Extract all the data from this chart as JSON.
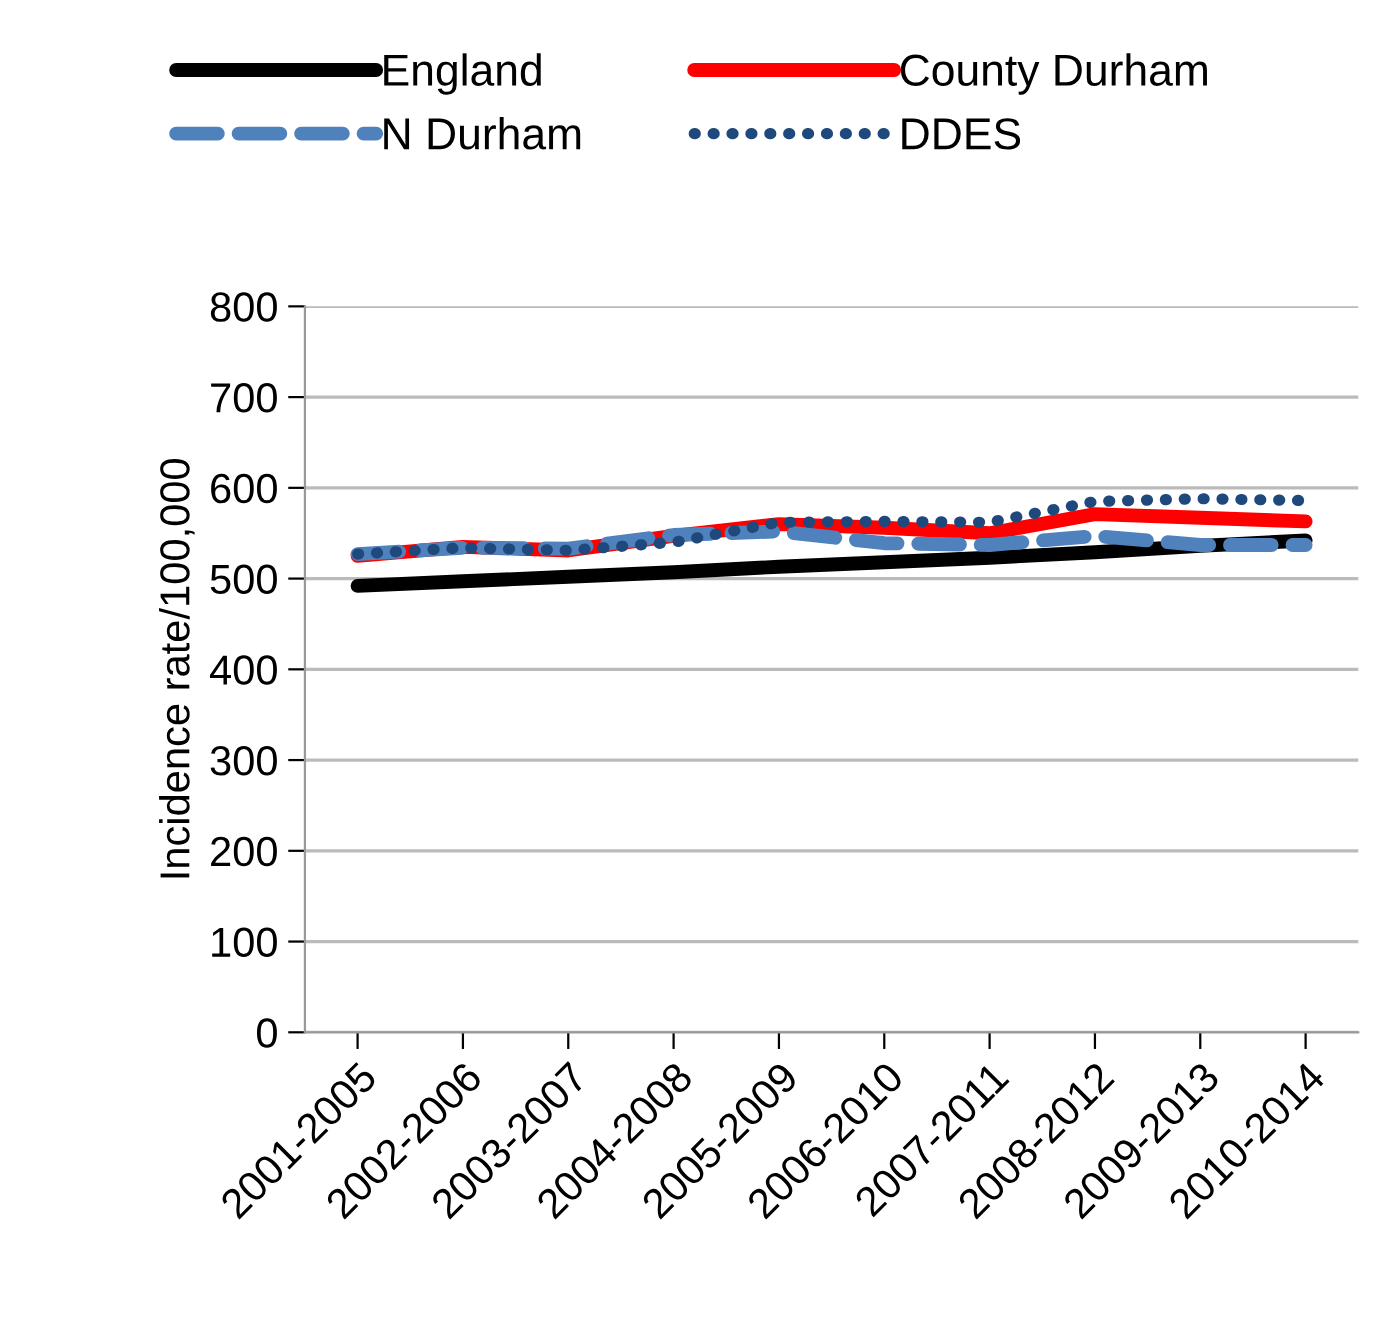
{
  "chart_data": {
    "type": "line",
    "ylabel": "Incidence rate/100,000",
    "categories": [
      "2001-2005",
      "2002-2006",
      "2003-2007",
      "2004-2008",
      "2005-2009",
      "2006-2010",
      "2007-2011",
      "2008-2012",
      "2009-2013",
      "2010-2014"
    ],
    "series": [
      {
        "name": "England",
        "color": "#000000",
        "line_style": "solid",
        "values": [
          492,
          497,
          502,
          507,
          513,
          518,
          523,
          529,
          536,
          542
        ]
      },
      {
        "name": "County Durham",
        "color": "#ff0000",
        "line_style": "solid",
        "values": [
          525,
          535,
          531,
          547,
          560,
          556,
          550,
          571,
          567,
          563
        ]
      },
      {
        "name": "N Durham",
        "color": "#4f81bd",
        "line_style": "dashed",
        "values": [
          527,
          534,
          533,
          548,
          552,
          539,
          537,
          547,
          537,
          537
        ]
      },
      {
        "name": "DDES",
        "color": "#1f497d",
        "line_style": "dotted",
        "values": [
          527,
          534,
          531,
          540,
          562,
          563,
          562,
          585,
          588,
          586
        ]
      }
    ],
    "ylim": [
      0,
      800
    ],
    "yticks": [
      0,
      100,
      200,
      300,
      400,
      500,
      600,
      700,
      800
    ],
    "grid": "y",
    "legend": "top",
    "marker": "none"
  }
}
